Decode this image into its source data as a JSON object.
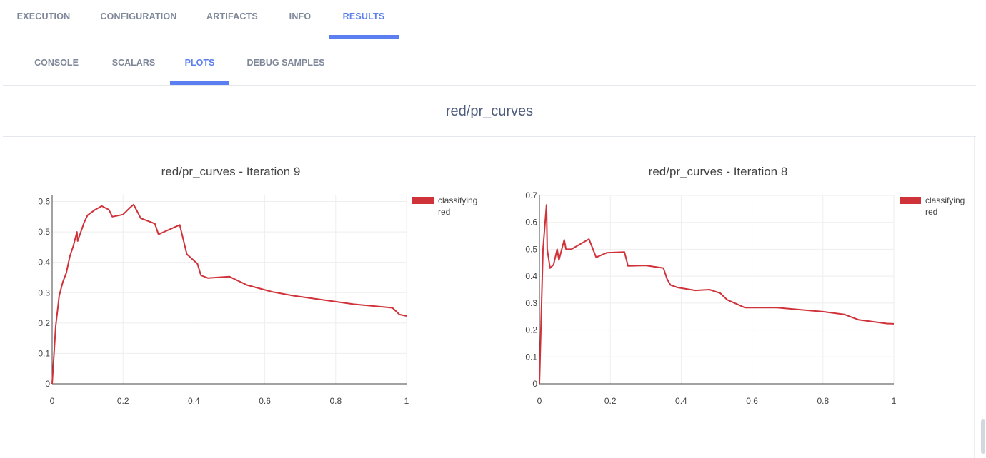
{
  "tabs": [
    {
      "label": "EXECUTION",
      "active": false
    },
    {
      "label": "CONFIGURATION",
      "active": false
    },
    {
      "label": "ARTIFACTS",
      "active": false
    },
    {
      "label": "INFO",
      "active": false
    },
    {
      "label": "RESULTS",
      "active": true
    }
  ],
  "subtabs": [
    {
      "label": "CONSOLE",
      "active": false
    },
    {
      "label": "SCALARS",
      "active": false
    },
    {
      "label": "PLOTS",
      "active": true
    },
    {
      "label": "DEBUG SAMPLES",
      "active": false
    }
  ],
  "group_title": "red/pr_curves",
  "colors": {
    "accent": "#5b7ff0",
    "series": "#d0323a",
    "muted_text": "#7f8899"
  },
  "chart_data": [
    {
      "type": "line",
      "title": "red/pr_curves - Iteration 9",
      "xlim": [
        0,
        1
      ],
      "ylim": [
        0,
        0.62
      ],
      "xticks": [
        0,
        0.2,
        0.4,
        0.6,
        0.8,
        1
      ],
      "xtick_labels": [
        "0",
        "0.2",
        "0.4",
        "0.6",
        "0.8",
        "1"
      ],
      "yticks": [
        0,
        0.1,
        0.2,
        0.3,
        0.4,
        0.5,
        0.6
      ],
      "ytick_labels": [
        "0",
        "0.1",
        "0.2",
        "0.3",
        "0.4",
        "0.5",
        "0.6"
      ],
      "grid": true,
      "legend": "top-right",
      "series": [
        {
          "name": "classifying red",
          "color": "#d0323a",
          "x": [
            0,
            0.01,
            0.02,
            0.03,
            0.04,
            0.05,
            0.06,
            0.07,
            0.072,
            0.09,
            0.1,
            0.12,
            0.14,
            0.16,
            0.17,
            0.2,
            0.22,
            0.23,
            0.25,
            0.29,
            0.3,
            0.36,
            0.38,
            0.41,
            0.42,
            0.44,
            0.5,
            0.55,
            0.62,
            0.68,
            0.85,
            0.96,
            0.98,
            1
          ],
          "y": [
            0,
            0.19,
            0.29,
            0.335,
            0.365,
            0.42,
            0.455,
            0.5,
            0.47,
            0.53,
            0.555,
            0.572,
            0.585,
            0.573,
            0.55,
            0.557,
            0.58,
            0.59,
            0.545,
            0.527,
            0.492,
            0.523,
            0.427,
            0.395,
            0.357,
            0.348,
            0.353,
            0.325,
            0.303,
            0.29,
            0.262,
            0.25,
            0.228,
            0.223
          ]
        }
      ]
    },
    {
      "type": "line",
      "title": "red/pr_curves - Iteration 8",
      "xlim": [
        0,
        1
      ],
      "ylim": [
        0,
        0.7
      ],
      "xticks": [
        0,
        0.2,
        0.4,
        0.6,
        0.8,
        1
      ],
      "xtick_labels": [
        "0",
        "0.2",
        "0.4",
        "0.6",
        "0.8",
        "1"
      ],
      "yticks": [
        0,
        0.1,
        0.2,
        0.3,
        0.4,
        0.5,
        0.6,
        0.7
      ],
      "ytick_labels": [
        "0",
        "0.1",
        "0.2",
        "0.3",
        "0.4",
        "0.5",
        "0.6",
        "0.7"
      ],
      "grid": true,
      "legend": "top-right",
      "series": [
        {
          "name": "classifying red",
          "color": "#d0323a",
          "x": [
            0,
            0.01,
            0.02,
            0.022,
            0.03,
            0.04,
            0.05,
            0.055,
            0.07,
            0.075,
            0.09,
            0.14,
            0.16,
            0.19,
            0.24,
            0.25,
            0.3,
            0.35,
            0.36,
            0.37,
            0.39,
            0.44,
            0.48,
            0.51,
            0.53,
            0.58,
            0.67,
            0.8,
            0.86,
            0.9,
            0.98,
            1
          ],
          "y": [
            0,
            0.5,
            0.665,
            0.5,
            0.43,
            0.443,
            0.5,
            0.46,
            0.535,
            0.5,
            0.5,
            0.538,
            0.47,
            0.487,
            0.49,
            0.438,
            0.44,
            0.43,
            0.39,
            0.367,
            0.358,
            0.347,
            0.35,
            0.337,
            0.312,
            0.283,
            0.283,
            0.268,
            0.258,
            0.238,
            0.224,
            0.223
          ]
        }
      ]
    }
  ]
}
